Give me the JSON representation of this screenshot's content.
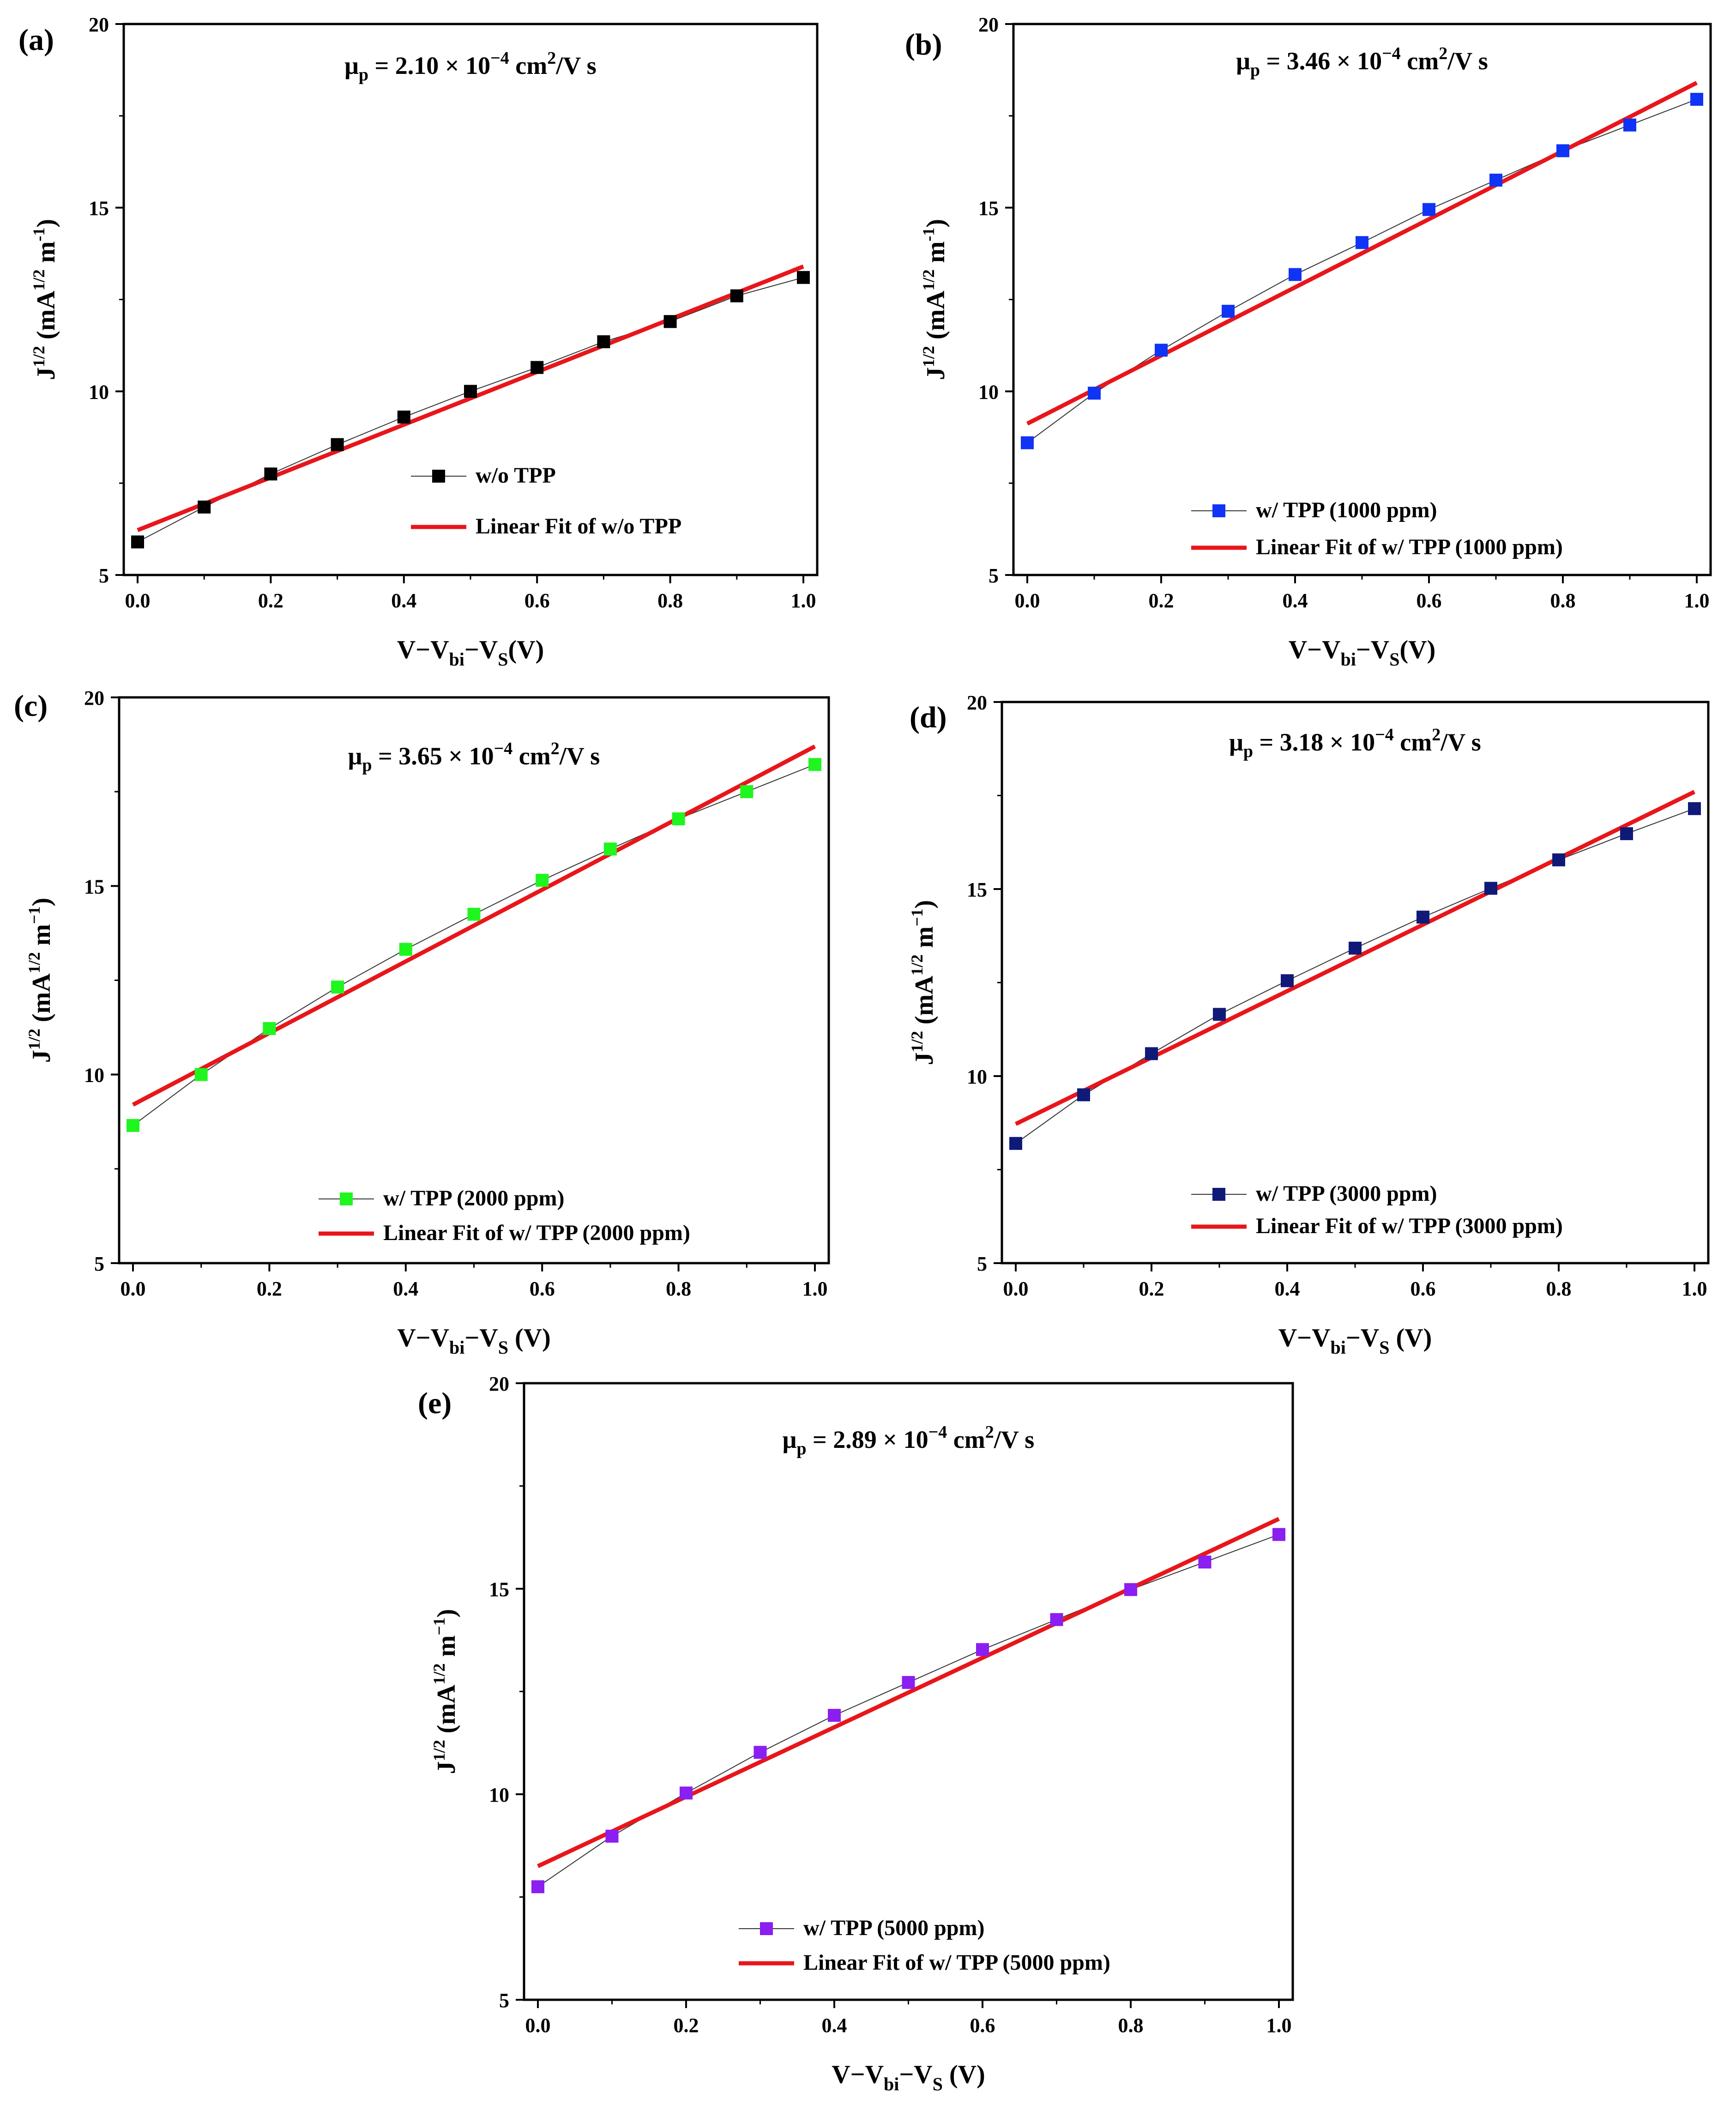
{
  "chart_data": [
    {
      "panel_label": "(a)",
      "type": "scatter",
      "title_pre": "μ",
      "title_sub": "p",
      "title_mid": " = 2.10 × 10",
      "title_sup": "−4",
      "title_unit_pre": " cm",
      "title_unit_sup": "2",
      "title_unit_post": "/V s",
      "xlabel": {
        "main": "V−V",
        "sub1": "bi",
        "mid": "−V",
        "sub2": "S",
        "end": "(V)"
      },
      "ylabel": {
        "main": "J",
        "sup1": "1/2",
        "mid": " (mA",
        "sup2": "1/2",
        "mid2": " m",
        "sup3": "-1",
        "end": ")"
      },
      "xlim": [
        0,
        1.0
      ],
      "ylim": [
        5,
        20
      ],
      "xticks": [
        "0.0",
        "0.2",
        "0.4",
        "0.6",
        "0.8",
        "1.0"
      ],
      "yticks": [
        "5",
        "10",
        "15",
        "20"
      ],
      "x": [
        0.0,
        0.1,
        0.2,
        0.3,
        0.4,
        0.5,
        0.6,
        0.7,
        0.8,
        0.9,
        1.0
      ],
      "y": [
        5.9,
        6.85,
        7.75,
        8.55,
        9.3,
        10.0,
        10.65,
        11.35,
        11.9,
        12.6,
        13.1
      ],
      "fit": {
        "x": [
          0.0,
          1.0
        ],
        "y": [
          6.22,
          13.4
        ]
      },
      "marker_color": "#000000",
      "fit_color": "#e8161b",
      "legend": [
        "w/o TPP",
        "Linear Fit of  w/o TPP"
      ]
    },
    {
      "panel_label": "(b)",
      "type": "scatter",
      "title_pre": "μ",
      "title_sub": "p",
      "title_mid": " = 3.46 × 10",
      "title_sup": "−4",
      "title_unit_pre": " cm",
      "title_unit_sup": "2",
      "title_unit_post": "/V s",
      "xlabel": {
        "main": "V−V",
        "sub1": "bi",
        "mid": "−V",
        "sub2": "S",
        "end": "(V)"
      },
      "ylabel": {
        "main": "J",
        "sup1": "1/2",
        "mid": " (mA",
        "sup2": "1/2",
        "mid2": " m",
        "sup3": "-1",
        "end": ")"
      },
      "xlim": [
        0,
        1.0
      ],
      "ylim": [
        5,
        20
      ],
      "xticks": [
        "0.0",
        "0.2",
        "0.4",
        "0.6",
        "0.8",
        "1.0"
      ],
      "yticks": [
        "5",
        "10",
        "15",
        "20"
      ],
      "x": [
        0.0,
        0.1,
        0.2,
        0.3,
        0.4,
        0.5,
        0.6,
        0.7,
        0.8,
        0.9,
        1.0
      ],
      "y": [
        8.6,
        9.95,
        11.12,
        12.18,
        13.18,
        14.05,
        14.95,
        15.75,
        16.55,
        17.25,
        17.95
      ],
      "fit": {
        "x": [
          0.0,
          1.0
        ],
        "y": [
          9.12,
          18.4
        ]
      },
      "marker_color": "#1034f5",
      "fit_color": "#e8161b",
      "legend": [
        "w/ TPP (1000 ppm)",
        "Linear Fit of  w/ TPP (1000 ppm)"
      ]
    },
    {
      "panel_label": "(c)",
      "type": "scatter",
      "title_pre": "μ",
      "title_sub": "p",
      "title_mid": " = 3.65 × 10",
      "title_sup": "−4",
      "title_unit_pre": " cm",
      "title_unit_sup": "2",
      "title_unit_post": "/V s",
      "xlabel": {
        "main": "V−V",
        "sub1": "bi",
        "mid": "−V",
        "sub2": "S",
        "end": " (V)"
      },
      "ylabel": {
        "main": "J",
        "sup1": "1/2",
        "mid": " (mA",
        "sup2": "1/2",
        "mid2": " m",
        "sup3": "−1",
        "end": ")"
      },
      "xlim": [
        0,
        1.0
      ],
      "ylim": [
        5,
        20
      ],
      "xticks": [
        "0.0",
        "0.2",
        "0.4",
        "0.6",
        "0.8",
        "1.0"
      ],
      "yticks": [
        "5",
        "10",
        "15",
        "20"
      ],
      "x": [
        0.0,
        0.1,
        0.2,
        0.3,
        0.4,
        0.5,
        0.6,
        0.7,
        0.8,
        0.9,
        1.0
      ],
      "y": [
        8.65,
        10.0,
        11.22,
        12.32,
        13.32,
        14.25,
        15.15,
        15.98,
        16.78,
        17.5,
        18.22
      ],
      "fit": {
        "x": [
          0.0,
          1.0
        ],
        "y": [
          9.2,
          18.7
        ]
      },
      "marker_color": "#1ff51f",
      "fit_color": "#e8161b",
      "legend": [
        "w/ TPP (2000 ppm)",
        "Linear Fit of  w/ TPP (2000 ppm)"
      ]
    },
    {
      "panel_label": "(d)",
      "type": "scatter",
      "title_pre": "μ",
      "title_sub": "p",
      "title_mid": " = 3.18 × 10",
      "title_sup": "−4",
      "title_unit_pre": " cm",
      "title_unit_sup": "2",
      "title_unit_post": "/V s",
      "xlabel": {
        "main": "V−V",
        "sub1": "bi",
        "mid": "−V",
        "sub2": "S",
        "end": " (V)"
      },
      "ylabel": {
        "main": "J",
        "sup1": "1/2",
        "mid": " (mA",
        "sup2": "1/2",
        "mid2": " m",
        "sup3": "−1",
        "end": ")"
      },
      "xlim": [
        0,
        1.0
      ],
      "ylim": [
        5,
        20
      ],
      "xticks": [
        "0.0",
        "0.2",
        "0.4",
        "0.6",
        "0.8",
        "1.0"
      ],
      "yticks": [
        "5",
        "10",
        "15",
        "20"
      ],
      "x": [
        0.0,
        0.1,
        0.2,
        0.3,
        0.4,
        0.5,
        0.6,
        0.7,
        0.8,
        0.9,
        1.0
      ],
      "y": [
        8.2,
        9.5,
        10.6,
        11.65,
        12.55,
        13.42,
        14.25,
        15.02,
        15.78,
        16.48,
        17.15
      ],
      "fit": {
        "x": [
          0.0,
          1.0
        ],
        "y": [
          8.72,
          17.6
        ]
      },
      "marker_color": "#0f1a78",
      "fit_color": "#e8161b",
      "legend": [
        "w/ TPP (3000 ppm)",
        "Linear Fit of  w/ TPP (3000 ppm)"
      ]
    },
    {
      "panel_label": "(e)",
      "type": "scatter",
      "title_pre": "μ",
      "title_sub": "p",
      "title_mid": " = 2.89 × 10",
      "title_sup": "−4",
      "title_unit_pre": " cm",
      "title_unit_sup": "2",
      "title_unit_post": "/V s",
      "xlabel": {
        "main": "V−V",
        "sub1": "bi",
        "mid": "−V",
        "sub2": "S",
        "end": " (V)"
      },
      "ylabel": {
        "main": "J",
        "sup1": "1/2",
        "mid": " (mA",
        "sup2": "1/2",
        "mid2": " m",
        "sup3": "−1",
        "end": ")"
      },
      "xlim": [
        0,
        1.0
      ],
      "ylim": [
        5,
        20
      ],
      "xticks": [
        "0.0",
        "0.2",
        "0.4",
        "0.6",
        "0.8",
        "1.0"
      ],
      "yticks": [
        "5",
        "10",
        "15",
        "20"
      ],
      "x": [
        0.0,
        0.1,
        0.2,
        0.3,
        0.4,
        0.5,
        0.6,
        0.7,
        0.8,
        0.9,
        1.0
      ],
      "y": [
        7.75,
        8.98,
        10.03,
        11.02,
        11.92,
        12.72,
        13.52,
        14.25,
        14.98,
        15.65,
        16.32
      ],
      "fit": {
        "x": [
          0.0,
          1.0
        ],
        "y": [
          8.25,
          16.7
        ]
      },
      "marker_color": "#8b1ef0",
      "fit_color": "#e8161b",
      "legend": [
        "w/ TPP (5000 ppm)",
        "Linear Fit of  w/ TPP (5000 ppm)"
      ]
    }
  ]
}
